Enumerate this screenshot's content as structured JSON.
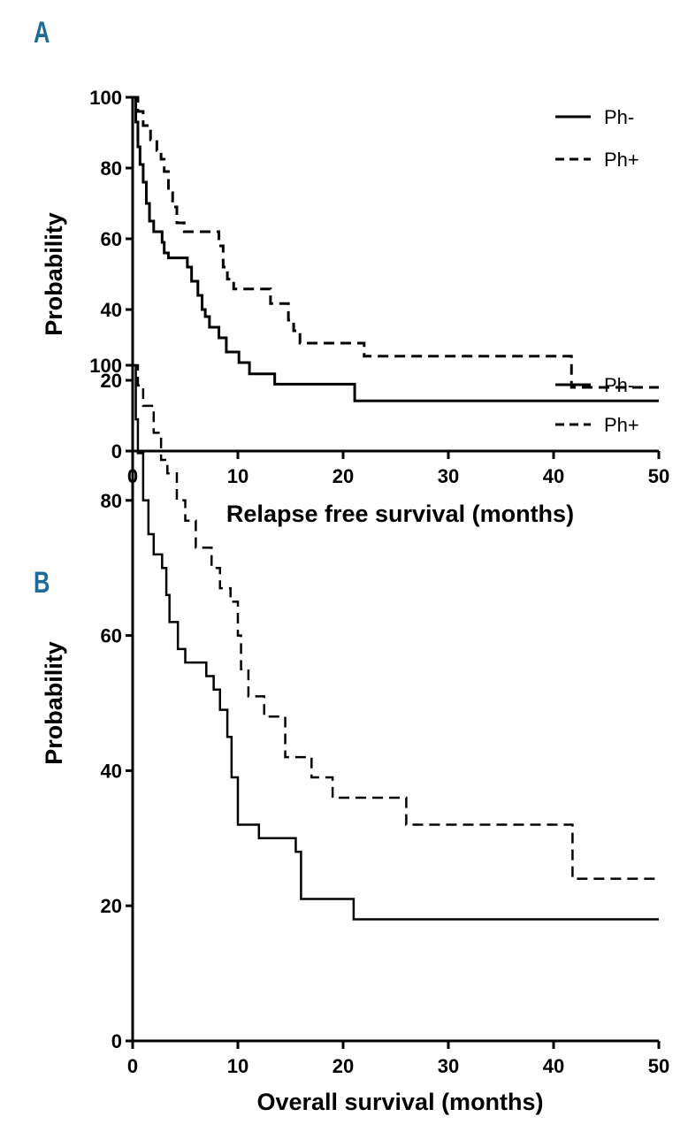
{
  "chart_data": [
    {
      "type": "line",
      "panel_label": "A",
      "xlabel": "Relapse free survival  (months)",
      "ylabel": "Probability",
      "xlim": [
        0,
        50
      ],
      "ylim": [
        0,
        100
      ],
      "xticks": [
        0,
        10,
        20,
        30,
        40,
        50
      ],
      "yticks": [
        0,
        20,
        40,
        60,
        80,
        100
      ],
      "legend_position": "top-right",
      "series": [
        {
          "name": "Ph-",
          "style": "solid",
          "points": [
            [
              0,
              100
            ],
            [
              0.3,
              93
            ],
            [
              0.5,
              86
            ],
            [
              0.7,
              81
            ],
            [
              1,
              76
            ],
            [
              1.3,
              70
            ],
            [
              1.6,
              65
            ],
            [
              2,
              62
            ],
            [
              2.8,
              59
            ],
            [
              3,
              56
            ],
            [
              3.4,
              54.6
            ],
            [
              5.2,
              52
            ],
            [
              5.6,
              48
            ],
            [
              6.2,
              44
            ],
            [
              6.6,
              40
            ],
            [
              6.9,
              38
            ],
            [
              7.3,
              35
            ],
            [
              8.2,
              32
            ],
            [
              8.9,
              28
            ],
            [
              9.1,
              28
            ],
            [
              10.1,
              25
            ],
            [
              11.1,
              21.8
            ],
            [
              13.5,
              18.9
            ],
            [
              21.1,
              14.2
            ],
            [
              50,
              14.2
            ]
          ]
        },
        {
          "name": "Ph+",
          "style": "dashed",
          "points": [
            [
              0,
              100
            ],
            [
              0.5,
              96
            ],
            [
              1,
              92
            ],
            [
              1.7,
              88
            ],
            [
              2.3,
              85
            ],
            [
              2.7,
              82.5
            ],
            [
              3,
              79
            ],
            [
              3.4,
              73
            ],
            [
              3.8,
              69
            ],
            [
              4.2,
              64.5
            ],
            [
              4.9,
              62
            ],
            [
              8.2,
              58
            ],
            [
              8.6,
              52
            ],
            [
              9.0,
              48.6
            ],
            [
              9.6,
              45.8
            ],
            [
              13.1,
              41.7
            ],
            [
              14.8,
              37
            ],
            [
              15.3,
              34
            ],
            [
              15.9,
              30.5
            ],
            [
              22,
              26.8
            ],
            [
              41.7,
              18
            ],
            [
              50,
              18
            ]
          ]
        }
      ]
    },
    {
      "type": "line",
      "panel_label": "B",
      "xlabel": "Overall survival  (months)",
      "ylabel": "Probability",
      "xlim": [
        0,
        50
      ],
      "ylim": [
        0,
        100
      ],
      "xticks": [
        0,
        10,
        20,
        30,
        40,
        50
      ],
      "yticks": [
        0,
        20,
        40,
        60,
        80,
        100
      ],
      "legend_position": "top-right",
      "series": [
        {
          "name": "Ph-",
          "style": "solid",
          "points": [
            [
              0,
              100
            ],
            [
              0.3,
              92
            ],
            [
              0.5,
              87
            ],
            [
              1,
              80
            ],
            [
              1.5,
              75
            ],
            [
              2,
              72
            ],
            [
              2.8,
              70
            ],
            [
              3.2,
              66
            ],
            [
              3.5,
              62
            ],
            [
              4.3,
              58
            ],
            [
              5,
              56
            ],
            [
              7,
              54
            ],
            [
              7.7,
              52
            ],
            [
              8.3,
              49
            ],
            [
              9,
              45
            ],
            [
              9.4,
              39
            ],
            [
              10,
              32
            ],
            [
              12,
              30
            ],
            [
              15.5,
              28
            ],
            [
              16,
              21
            ],
            [
              21,
              18
            ],
            [
              50,
              18
            ]
          ]
        },
        {
          "name": "Ph+",
          "style": "dashed",
          "points": [
            [
              0,
              100
            ],
            [
              0.5,
              97
            ],
            [
              1,
              94
            ],
            [
              2,
              90
            ],
            [
              2.7,
              86
            ],
            [
              3.3,
              84
            ],
            [
              4.2,
              80
            ],
            [
              5,
              77
            ],
            [
              6,
              73
            ],
            [
              7.5,
              70
            ],
            [
              8.3,
              67
            ],
            [
              9.3,
              65
            ],
            [
              10,
              60
            ],
            [
              10.3,
              55
            ],
            [
              11,
              51
            ],
            [
              12.5,
              48
            ],
            [
              14.5,
              42
            ],
            [
              17,
              39
            ],
            [
              19,
              36
            ],
            [
              26,
              32
            ],
            [
              41.8,
              24
            ],
            [
              50,
              24
            ]
          ]
        }
      ]
    }
  ]
}
